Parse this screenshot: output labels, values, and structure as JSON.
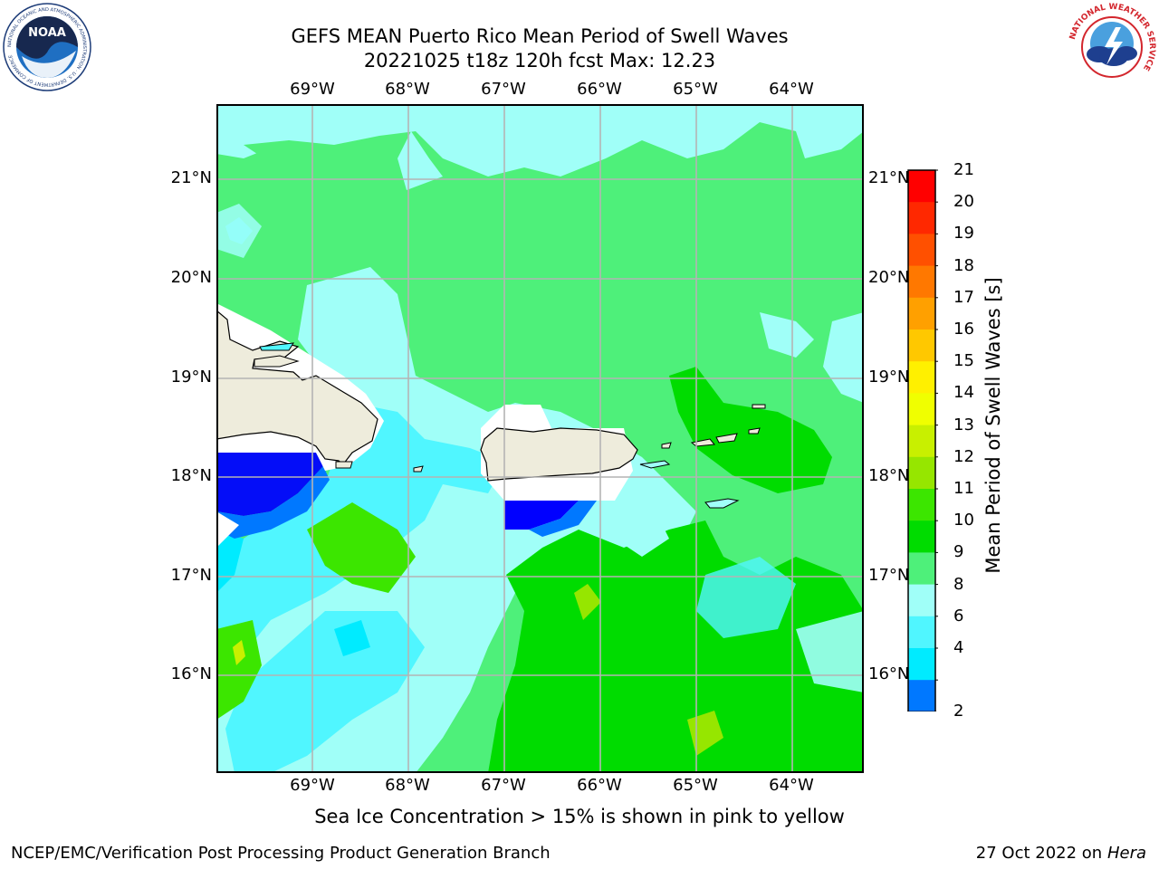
{
  "header": {
    "title_line1": "GEFS MEAN Puerto Rico Mean Period of Swell Waves",
    "title_line2": "20221025 t18z 120h fcst   Max: 12.23"
  },
  "map": {
    "lon_labels": [
      "69°W",
      "68°W",
      "67°W",
      "66°W",
      "65°W",
      "64°W"
    ],
    "lat_labels": [
      "21°N",
      "20°N",
      "19°N",
      "18°N",
      "17°N",
      "16°N"
    ],
    "land_color": "#eeecdc",
    "masked_color": "#ffffff"
  },
  "colorbar": {
    "label": "Mean Period of Swell Waves [s]",
    "ticks": [
      "21",
      "20",
      "19",
      "18",
      "17",
      "16",
      "15",
      "14",
      "13",
      "12",
      "11",
      "10",
      "9",
      "8",
      "6",
      "4",
      "2"
    ],
    "colors": [
      "#ff0000",
      "#ff2800",
      "#ff5000",
      "#ff7800",
      "#ffa000",
      "#ffc800",
      "#fff000",
      "#f0ff00",
      "#c8f000",
      "#96e600",
      "#3ce600",
      "#00dc00",
      "#4ef07a",
      "#a0fff8",
      "#50f6ff",
      "#00ebff",
      "#0078ff"
    ],
    "under_color": "#0000ff"
  },
  "notes": {
    "sea_ice": "Sea Ice Concentration > 15% is shown in pink to yellow"
  },
  "footer": {
    "left": "NCEP/EMC/Verification Post Processing Product Generation Branch",
    "date": "27 Oct 2022 on",
    "machine": "Hera"
  },
  "logos": {
    "noaa_text": "NOAA",
    "noaa_ring": "NATIONAL OCEANIC AND ATMOSPHERIC ADMINISTRATION · U.S. DEPARTMENT OF COMMERCE",
    "nws_ring": "NATIONAL WEATHER SERVICE"
  }
}
